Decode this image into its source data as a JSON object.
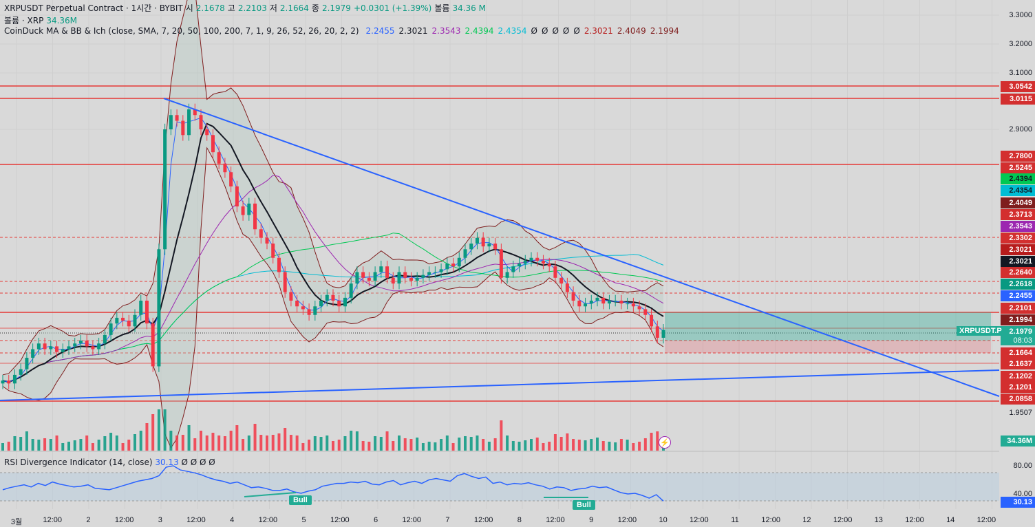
{
  "header": {
    "symbol": "XRPUSDT Perpetual Contract · 1시간 · BYBIT",
    "open_label": "시",
    "open": "2.1678",
    "high_label": "고",
    "high": "2.2103",
    "low_label": "저",
    "low": "2.1664",
    "close_label": "종",
    "close": "2.1979",
    "change": "+0.0301 (+1.39%)",
    "volume_label": "볼륨",
    "volume": "34.36 M",
    "vol_row_label": "볼륨 · XRP",
    "vol_row_value": "34.36M",
    "indicator_name": "CoinDuck MA & BB & Ich (close, SMA, 7, 20, 50, 100, 200, 7, 1, 9, 26, 52, 26, 20, 2, 2)",
    "indicator_values": [
      {
        "v": "2.2455",
        "color": "#2962ff"
      },
      {
        "v": "2.3021",
        "color": "#131722"
      },
      {
        "v": "2.3543",
        "color": "#9c27b0"
      },
      {
        "v": "2.4394",
        "color": "#00c853"
      },
      {
        "v": "2.4354",
        "color": "#00bcd4"
      },
      {
        "v": "Ø",
        "color": "#131722"
      },
      {
        "v": "Ø",
        "color": "#131722"
      },
      {
        "v": "Ø",
        "color": "#131722"
      },
      {
        "v": "Ø",
        "color": "#131722"
      },
      {
        "v": "Ø",
        "color": "#131722"
      },
      {
        "v": "2.3021",
        "color": "#b71c1c"
      },
      {
        "v": "2.4049",
        "color": "#7f1d1d"
      },
      {
        "v": "2.1994",
        "color": "#7f1d1d"
      }
    ]
  },
  "price_axis": [
    "3.3000",
    "3.2000",
    "3.1000",
    "2.9000",
    "1.9507"
  ],
  "price_tags": [
    {
      "label": "3.0542",
      "bg": "#d32f2f"
    },
    {
      "label": "3.0115",
      "bg": "#d32f2f"
    },
    {
      "label": "2.7800",
      "bg": "#d32f2f"
    },
    {
      "label": "2.5245",
      "bg": "#d32f2f"
    },
    {
      "label": "2.4394",
      "bg": "#00c853"
    },
    {
      "label": "2.4354",
      "bg": "#00bcd4"
    },
    {
      "label": "2.4049",
      "bg": "#7f1d1d"
    },
    {
      "label": "2.3713",
      "bg": "#d32f2f"
    },
    {
      "label": "2.3543",
      "bg": "#9c27b0"
    },
    {
      "label": "2.3302",
      "bg": "#d32f2f"
    },
    {
      "label": "2.3021",
      "bg": "#b71c1c"
    },
    {
      "label": "2.3021",
      "bg": "#131722"
    },
    {
      "label": "2.2640",
      "bg": "#d32f2f"
    },
    {
      "label": "2.2618",
      "bg": "#089981"
    },
    {
      "label": "2.2455",
      "bg": "#2962ff"
    },
    {
      "label": "2.2101",
      "bg": "#d32f2f"
    },
    {
      "label": "2.1994",
      "bg": "#7f1d1d"
    },
    {
      "label": "2.1979",
      "bg": "#22ab94"
    },
    {
      "label": "2.1664",
      "bg": "#d32f2f"
    },
    {
      "label": "2.1637",
      "bg": "#d32f2f"
    },
    {
      "label": "2.1202",
      "bg": "#d32f2f"
    },
    {
      "label": "2.1201",
      "bg": "#d32f2f"
    },
    {
      "label": "2.0858",
      "bg": "#d32f2f"
    },
    {
      "label": "34.36M",
      "bg": "#22ab94"
    }
  ],
  "position_label": "XRPUSDT.P",
  "countdown": "08:03",
  "rsi": {
    "title": "RSI Divergence Indicator (14, close)",
    "value": "30.13",
    "extras": "Ø Ø Ø Ø",
    "axis": [
      "80.00",
      "40.00"
    ],
    "value_tag": "30.13",
    "bull_labels": [
      "Bull",
      "Bull"
    ]
  },
  "time_axis": [
    "3월",
    "12:00",
    "2",
    "12:00",
    "3",
    "12:00",
    "4",
    "12:00",
    "5",
    "12:00",
    "6",
    "12:00",
    "7",
    "12:00",
    "8",
    "12:00",
    "9",
    "12:00",
    "10",
    "12:00",
    "11",
    "12:00",
    "12",
    "12:00",
    "13",
    "12:00",
    "14",
    "12:00"
  ],
  "colors": {
    "up": "#089981",
    "down": "#f23645",
    "trend": "#2962ff",
    "level": "#e53935",
    "rsi": "#2962ff"
  },
  "chart_data": {
    "type": "candlestick",
    "symbol": "XRPUSDT.P",
    "interval": "1h",
    "ylim": [
      1.9507,
      3.3
    ],
    "price_axis_ticks": [
      3.3,
      3.2,
      3.1,
      2.9
    ],
    "horizontal_levels": [
      3.0542,
      3.0115,
      2.5245,
      2.2101,
      2.0858
    ],
    "dashed_levels": [
      2.3302,
      2.264,
      2.1664
    ],
    "candles_close": [
      2.02,
      2.01,
      2.04,
      2.06,
      2.1,
      2.13,
      2.15,
      2.13,
      2.14,
      2.12,
      2.13,
      2.14,
      2.15,
      2.16,
      2.14,
      2.13,
      2.15,
      2.18,
      2.22,
      2.24,
      2.23,
      2.21,
      2.25,
      2.3,
      2.22,
      2.07,
      2.48,
      2.9,
      2.95,
      2.93,
      2.88,
      2.97,
      2.95,
      2.9,
      2.88,
      2.82,
      2.78,
      2.75,
      2.7,
      2.63,
      2.6,
      2.64,
      2.55,
      2.52,
      2.5,
      2.45,
      2.4,
      2.33,
      2.3,
      2.28,
      2.27,
      2.25,
      2.28,
      2.3,
      2.32,
      2.3,
      2.28,
      2.31,
      2.36,
      2.4,
      2.38,
      2.37,
      2.4,
      2.42,
      2.38,
      2.36,
      2.4,
      2.38,
      2.37,
      2.38,
      2.39,
      2.4,
      2.4,
      2.41,
      2.43,
      2.42,
      2.45,
      2.48,
      2.5,
      2.52,
      2.49,
      2.5,
      2.48,
      2.38,
      2.4,
      2.42,
      2.43,
      2.44,
      2.45,
      2.44,
      2.43,
      2.42,
      2.38,
      2.36,
      2.33,
      2.3,
      2.28,
      2.29,
      2.3,
      2.31,
      2.29,
      2.3,
      2.3,
      2.29,
      2.29,
      2.28,
      2.27,
      2.25,
      2.21,
      2.17,
      2.198
    ],
    "rsi_values": [
      46,
      49,
      51,
      53,
      50,
      55,
      52,
      57,
      54,
      52,
      50,
      51,
      53,
      48,
      47,
      46,
      49,
      52,
      55,
      58,
      60,
      62,
      66,
      78,
      80,
      74,
      72,
      70,
      67,
      63,
      60,
      58,
      55,
      57,
      53,
      49,
      50,
      48,
      45,
      45,
      47,
      43,
      41,
      44,
      46,
      51,
      53,
      55,
      55,
      57,
      56,
      58,
      54,
      53,
      57,
      59,
      53,
      56,
      58,
      55,
      60,
      62,
      60,
      58,
      66,
      69,
      65,
      62,
      64,
      55,
      57,
      53,
      55,
      54,
      56,
      53,
      51,
      47,
      50,
      49,
      45,
      47,
      48,
      51,
      49,
      50,
      46,
      42,
      40,
      41,
      38,
      34,
      39,
      30
    ],
    "rsi_axis_ticks": [
      80,
      40
    ],
    "bull_divergences": 2
  }
}
